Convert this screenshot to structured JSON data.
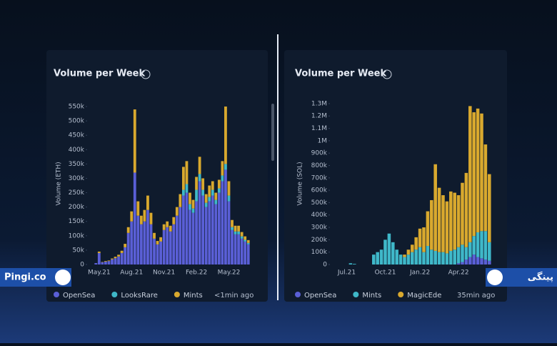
{
  "chart_data": [
    {
      "type": "stacked_bar",
      "title": "Volume per Week",
      "y_label": "Volume (ETH)",
      "categories": [
        null,
        "May.21",
        null,
        null,
        null,
        null,
        null,
        null,
        null,
        null,
        null,
        "Aug.21",
        null,
        null,
        null,
        null,
        null,
        null,
        null,
        null,
        null,
        "Nov.21",
        null,
        null,
        null,
        null,
        null,
        null,
        null,
        null,
        null,
        "Feb.22",
        null,
        null,
        null,
        null,
        null,
        null,
        null,
        null,
        null,
        "May.22",
        null,
        null,
        null,
        null,
        null,
        null
      ],
      "ylim": [
        0,
        565000
      ],
      "yticks": [
        0,
        {
          "value": 50000,
          "label": "50k"
        },
        {
          "value": 100000,
          "label": "100k"
        },
        {
          "value": 150000,
          "label": "150k"
        },
        {
          "value": 200000,
          "label": "200k"
        },
        {
          "value": 250000,
          "label": "250k"
        },
        {
          "value": 300000,
          "label": "300k"
        },
        {
          "value": 350000,
          "label": "350k"
        },
        {
          "value": 400000,
          "label": "400k"
        },
        {
          "value": 450000,
          "label": "450k"
        },
        {
          "value": 500000,
          "label": "500k"
        },
        {
          "value": 550000,
          "label": "550k"
        }
      ],
      "footer": "<1min ago",
      "series": [
        {
          "name": "OpenSea",
          "color": "#5a5fd6",
          "values": [
            5000,
            40000,
            8000,
            10000,
            12000,
            18000,
            22000,
            28000,
            40000,
            60000,
            110000,
            150000,
            320000,
            170000,
            140000,
            150000,
            190000,
            140000,
            90000,
            70000,
            80000,
            120000,
            130000,
            115000,
            140000,
            170000,
            200000,
            240000,
            250000,
            190000,
            180000,
            220000,
            290000,
            240000,
            200000,
            220000,
            240000,
            210000,
            250000,
            290000,
            330000,
            220000,
            120000,
            105000,
            105000,
            90000,
            80000,
            70000
          ]
        },
        {
          "name": "LooksRare",
          "color": "#3fb8c9",
          "values": [
            0,
            0,
            0,
            0,
            0,
            0,
            0,
            0,
            0,
            0,
            0,
            0,
            0,
            0,
            0,
            0,
            0,
            0,
            0,
            0,
            0,
            0,
            0,
            0,
            0,
            0,
            0,
            20000,
            30000,
            20000,
            15000,
            40000,
            25000,
            20000,
            15000,
            15000,
            20000,
            15000,
            15000,
            20000,
            20000,
            20000,
            10000,
            10000,
            10000,
            8000,
            6000,
            5000
          ]
        },
        {
          "name": "Mints",
          "color": "#d9a92e",
          "values": [
            0,
            5000,
            1000,
            2000,
            2000,
            3000,
            5000,
            6000,
            8000,
            12000,
            20000,
            35000,
            220000,
            50000,
            30000,
            40000,
            50000,
            40000,
            20000,
            12000,
            15000,
            20000,
            20000,
            20000,
            25000,
            30000,
            45000,
            80000,
            80000,
            40000,
            30000,
            45000,
            60000,
            40000,
            30000,
            40000,
            30000,
            25000,
            30000,
            50000,
            200000,
            50000,
            25000,
            20000,
            20000,
            15000,
            12000,
            10000
          ]
        }
      ]
    },
    {
      "type": "stacked_bar",
      "title": "Volume per Week",
      "y_label": "Volume (SOL)",
      "categories": [
        null,
        null,
        "Jul.21",
        null,
        null,
        null,
        null,
        null,
        null,
        null,
        null,
        null,
        "Oct.21",
        null,
        null,
        null,
        null,
        null,
        null,
        null,
        null,
        "Jan.22",
        null,
        null,
        null,
        null,
        null,
        null,
        null,
        null,
        null,
        "Apr.22",
        null,
        null,
        null,
        null,
        null,
        null,
        null,
        null
      ],
      "ylim": [
        0,
        1340000
      ],
      "yticks": [
        0,
        {
          "value": 100000,
          "label": "100k"
        },
        {
          "value": 200000,
          "label": "200k"
        },
        {
          "value": 300000,
          "label": "300k"
        },
        {
          "value": 400000,
          "label": "400k"
        },
        {
          "value": 500000,
          "label": "500k"
        },
        {
          "value": 600000,
          "label": "600k"
        },
        {
          "value": 700000,
          "label": "700k"
        },
        {
          "value": 800000,
          "label": "800k"
        },
        {
          "value": 900000,
          "label": "900k"
        },
        {
          "value": 1000000,
          "label": "1M"
        },
        {
          "value": 1100000,
          "label": "1.1M"
        },
        {
          "value": 1200000,
          "label": "1.2M"
        },
        {
          "value": 1300000,
          "label": "1.3M"
        }
      ],
      "footer": "35min ago",
      "series": [
        {
          "name": "OpenSea",
          "color": "#5a5fd6",
          "values": [
            0,
            0,
            0,
            0,
            0,
            0,
            0,
            0,
            0,
            0,
            0,
            0,
            0,
            0,
            0,
            0,
            0,
            0,
            0,
            0,
            0,
            0,
            0,
            0,
            0,
            0,
            0,
            0,
            0,
            0,
            0,
            10000,
            20000,
            40000,
            60000,
            80000,
            60000,
            50000,
            40000,
            30000
          ]
        },
        {
          "name": "Mints",
          "color": "#3fb8c9",
          "values": [
            0,
            0,
            0,
            10000,
            5000,
            0,
            0,
            0,
            0,
            80000,
            100000,
            120000,
            200000,
            250000,
            180000,
            120000,
            80000,
            60000,
            80000,
            100000,
            120000,
            140000,
            100000,
            150000,
            120000,
            110000,
            100000,
            100000,
            90000,
            110000,
            120000,
            130000,
            140000,
            100000,
            120000,
            150000,
            200000,
            220000,
            230000,
            150000
          ]
        },
        {
          "name": "MagicEde",
          "color": "#d9a92e",
          "values": [
            0,
            0,
            0,
            0,
            0,
            0,
            0,
            0,
            0,
            0,
            0,
            0,
            0,
            0,
            0,
            0,
            0,
            20000,
            40000,
            60000,
            100000,
            150000,
            200000,
            280000,
            400000,
            700000,
            520000,
            460000,
            420000,
            480000,
            460000,
            420000,
            500000,
            600000,
            1100000,
            1000000,
            1000000,
            950000,
            700000,
            550000
          ]
        }
      ]
    }
  ],
  "branding": {
    "left": "Pingi.co",
    "right": "پینگی"
  }
}
